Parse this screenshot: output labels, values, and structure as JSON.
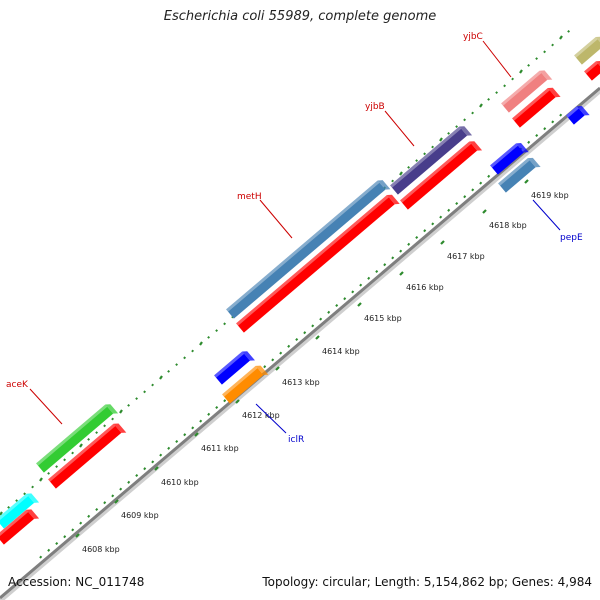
{
  "title": "Escherichia coli 55989, complete genome",
  "footer": {
    "accession": "Accession: NC_011748",
    "summary": "Topology: circular; Length: 5,154,862 bp; Genes: 4,984"
  },
  "colors": {
    "dot_track": "#2e8b2e",
    "backbone": "#8c8c8c",
    "forward_label": "#cc0000",
    "reverse_label": "#0000cc"
  },
  "ticks": [
    {
      "label": "4608 kbp"
    },
    {
      "label": "4609 kbp"
    },
    {
      "label": "4610 kbp"
    },
    {
      "label": "4611 kbp"
    },
    {
      "label": "4612 kbp"
    },
    {
      "label": "4613 kbp"
    },
    {
      "label": "4614 kbp"
    },
    {
      "label": "4615 kbp"
    },
    {
      "label": "4616 kbp"
    },
    {
      "label": "4617 kbp"
    },
    {
      "label": "4618 kbp"
    },
    {
      "label": "4619 kbp"
    }
  ],
  "gene_labels": {
    "aceK": "aceK",
    "metH": "metH",
    "yjbB": "yjbB",
    "yjbC": "yjbC",
    "iclR": "iclR",
    "pepE": "pepE"
  },
  "feature_colors": {
    "forward_cds": "#ff0000",
    "aceK": "#33cc33",
    "cyan": "#00ffff",
    "metH": "#4682b4",
    "yjbB": "#483d8b",
    "yjbC": "#f08080",
    "olive": "#bdb76b",
    "reverse_blue": "#0000ff",
    "iclR": "#ff8c00",
    "pepE": "#4682b4"
  }
}
